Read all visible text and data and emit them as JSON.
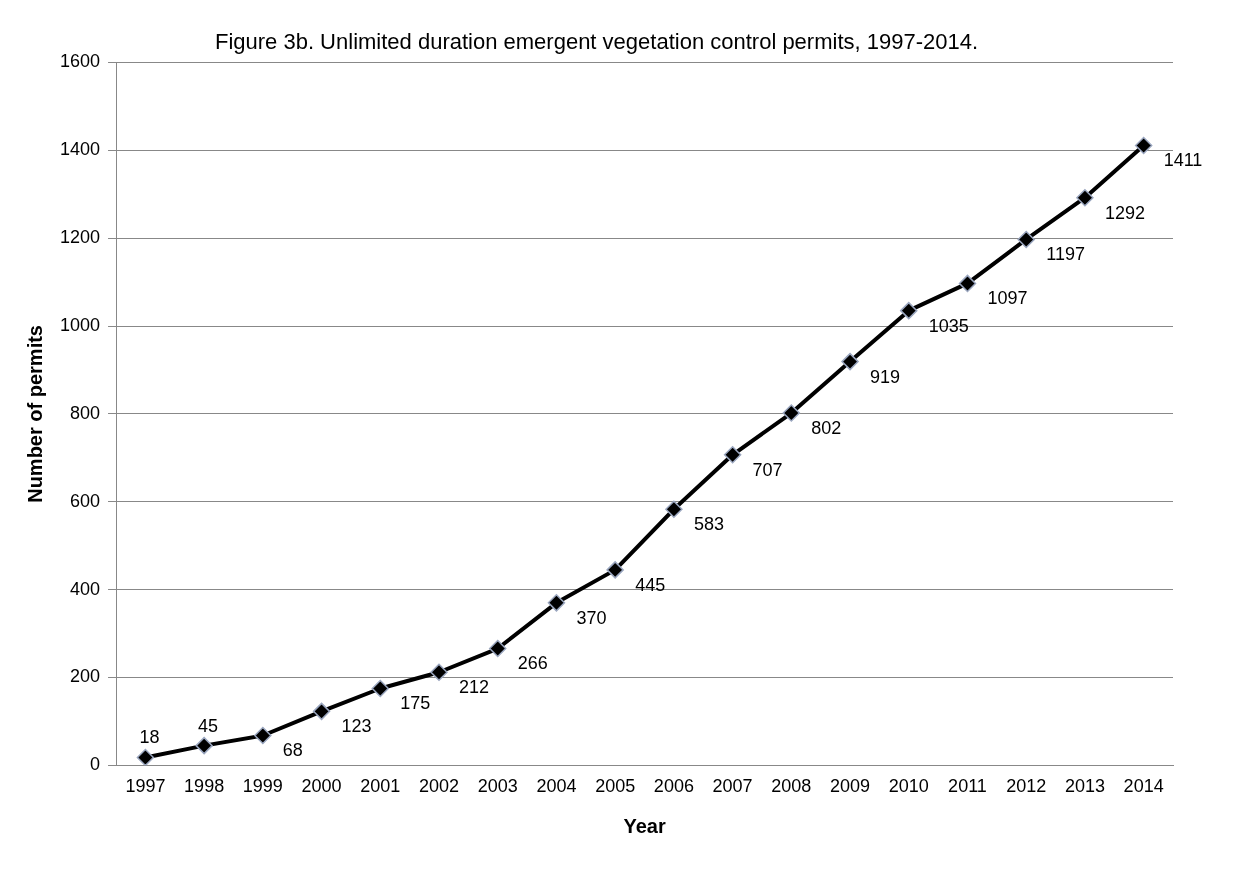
{
  "chart_data": {
    "type": "line",
    "title": "Figure 3b. Unlimited duration emergent vegetation control permits, 1997-2014.",
    "xlabel": "Year",
    "ylabel": "Number of permits",
    "categories": [
      "1997",
      "1998",
      "1999",
      "2000",
      "2001",
      "2002",
      "2003",
      "2004",
      "2005",
      "2006",
      "2007",
      "2008",
      "2009",
      "2010",
      "2011",
      "2012",
      "2013",
      "2014"
    ],
    "series": [
      {
        "color": "#000000",
        "values": [
          18,
          45,
          68,
          123,
          175,
          212,
          266,
          370,
          445,
          583,
          707,
          802,
          919,
          1035,
          1097,
          1197,
          1292,
          1411
        ]
      }
    ],
    "ylim": [
      0,
      1600
    ],
    "yticks": [
      0,
      200,
      400,
      600,
      800,
      1000,
      1200,
      1400,
      1600
    ],
    "grid": "y",
    "legend": false,
    "marker": "diamond",
    "line_style": "solid",
    "data_labels": true
  }
}
